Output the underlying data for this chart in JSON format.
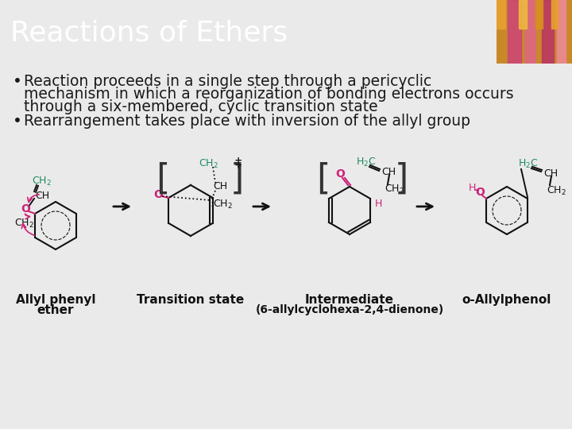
{
  "title": "Reactions of Ethers",
  "title_bg_color": "#7B2B42",
  "title_text_color": "#FFFFFF",
  "title_fontsize": 26,
  "body_bg_color": "#E8E8E8",
  "bullet1_line1": "Reaction proceeds in a single step through a pericyclic",
  "bullet1_line2": "mechanism in which a reorganization of bonding electrons occurs",
  "bullet1_line3": "through a six-membered, cyclic transition state",
  "bullet2": "Rearrangement takes place with inversion of the allyl group",
  "bullet_fontsize": 13.5,
  "bullet_color": "#1A1A1A",
  "label1_l1": "Allyl phenyl",
  "label1_l2": "ether",
  "label2": "Transition state",
  "label3_l1": "Intermediate",
  "label3_l2": "(6-allylcyclohexa-2,4-dienone)",
  "label4": "o-Allylphenol",
  "label_fontsize": 11,
  "label_color": "#1A1A1A",
  "teal_color": "#1D8A5E",
  "magenta_color": "#CC2277",
  "black": "#111111",
  "bracket_color": "#333333",
  "flower_bg": "#C8A060",
  "slide_bg": "#EAEAEA"
}
